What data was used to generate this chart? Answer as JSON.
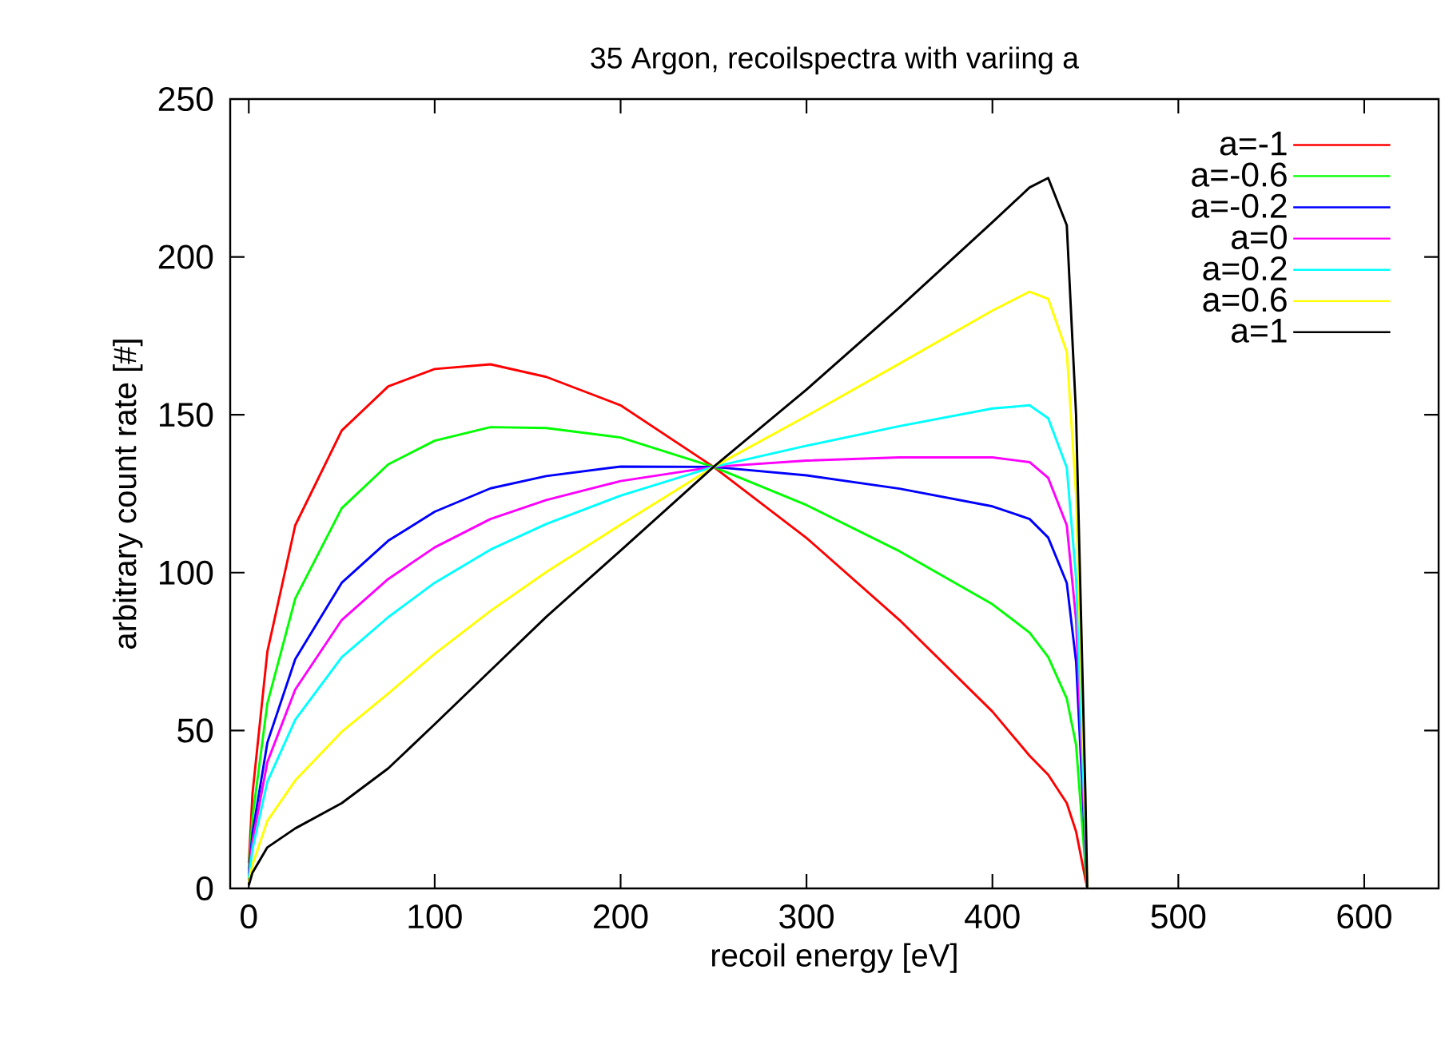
{
  "chart_data": {
    "type": "line",
    "title": "35 Argon, recoilspectra with variing a",
    "xlabel": "recoil energy [eV]",
    "ylabel": "arbitrary count rate [#]",
    "x": [
      0,
      2,
      10,
      25,
      50,
      75,
      100,
      130,
      160,
      200,
      250,
      300,
      350,
      400,
      420,
      430,
      440,
      445,
      450,
      451
    ],
    "series": [
      {
        "name": "a=-1",
        "color": "#ff0000",
        "values": [
          8,
          30,
          75,
          115,
          145,
          159,
          164.5,
          166,
          162,
          153,
          133.5,
          111,
          85,
          56,
          42,
          36,
          27,
          18,
          3,
          0
        ]
      },
      {
        "name": "a=-0.6",
        "color": "#00ff00",
        "values": [
          6.1,
          22.5,
          58.6,
          91.8,
          120.4,
          134.3,
          141.8,
          146.1,
          145.8,
          142.8,
          133.5,
          121.4,
          106.8,
          90,
          81,
          73.3,
          60.1,
          45.4,
          6.9,
          0
        ]
      },
      {
        "name": "a=-0.2",
        "color": "#0000ff",
        "values": [
          4.7,
          17.5,
          46.2,
          72.6,
          96.8,
          110.1,
          119.3,
          126.7,
          130.6,
          133.6,
          133.5,
          130.8,
          126.6,
          121,
          117,
          111.1,
          96.7,
          71.8,
          12.3,
          0
        ]
      },
      {
        "name": "a=0",
        "color": "#ff00ff",
        "values": [
          4,
          15,
          40,
          63,
          85,
          98,
          108,
          117,
          123,
          129,
          133.5,
          135.5,
          136.5,
          136.5,
          135,
          130,
          115,
          85,
          15,
          0
        ]
      },
      {
        "name": "a=0.2",
        "color": "#00ffff",
        "values": [
          3.3,
          12.5,
          33.8,
          53.4,
          73.2,
          85.9,
          96.8,
          107.3,
          115.4,
          124.4,
          133.5,
          140.2,
          146.4,
          152,
          153,
          148.9,
          133.3,
          98.2,
          17.7,
          0
        ]
      },
      {
        "name": "a=0.6",
        "color": "#ffff00",
        "values": [
          1.9,
          7.5,
          21.4,
          34.2,
          49.6,
          61.7,
          74.3,
          87.9,
          100.2,
          115.2,
          133.5,
          149.6,
          166.2,
          183,
          189,
          186.7,
          169.9,
          124.6,
          23.1,
          0
        ]
      },
      {
        "name": "a=1",
        "color": "#000000",
        "values": [
          1,
          5,
          13,
          19,
          27,
          38,
          52,
          69,
          86,
          107,
          133.5,
          158,
          184,
          211,
          222,
          225,
          210,
          150,
          30,
          0
        ]
      }
    ],
    "xlim": [
      -10,
      640
    ],
    "ylim": [
      0,
      250
    ],
    "xticks": [
      0,
      100,
      200,
      300,
      400,
      500,
      600
    ],
    "yticks": [
      0,
      50,
      100,
      150,
      200,
      250
    ],
    "grid": false,
    "legend": "top right",
    "marker": "none",
    "line_style": "solid"
  }
}
